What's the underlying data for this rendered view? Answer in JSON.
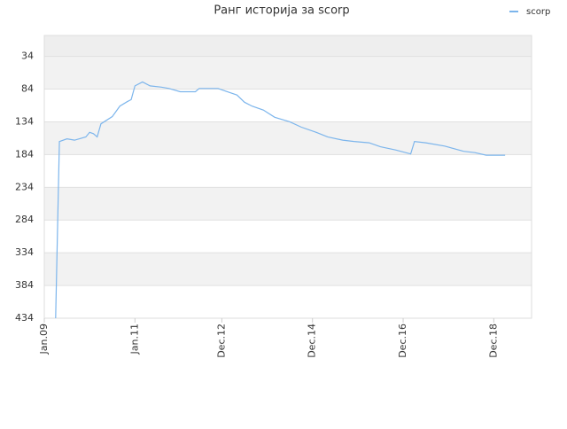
{
  "chart_data": {
    "type": "line",
    "title": "Ранг историја за scorp",
    "x": [
      "2009-04",
      "2009-05",
      "2009-07",
      "2009-09",
      "2009-12",
      "2010-01",
      "2010-02",
      "2010-03",
      "2010-04",
      "2010-07",
      "2010-09",
      "2010-11",
      "2010-12",
      "2011-01",
      "2011-03",
      "2011-05",
      "2011-08",
      "2011-10",
      "2012-01",
      "2012-05",
      "2012-06",
      "2012-11",
      "2013-01",
      "2013-04",
      "2013-06",
      "2013-08",
      "2013-11",
      "2014-02",
      "2014-06",
      "2014-09",
      "2015-01",
      "2015-04",
      "2015-08",
      "2015-11",
      "2016-03",
      "2016-06",
      "2016-10",
      "2017-02",
      "2017-03",
      "2017-06",
      "2017-11",
      "2018-04",
      "2018-07",
      "2018-10",
      "2019-03"
    ],
    "series": [
      {
        "name": "scorp",
        "color": "#7cb5ec",
        "values": [
          434,
          164,
          160,
          162,
          157,
          150,
          152,
          157,
          137,
          126,
          110,
          103,
          100,
          79,
          73,
          79,
          81,
          83,
          88,
          88,
          83,
          83,
          87,
          93,
          104,
          110,
          116,
          127,
          134,
          142,
          150,
          157,
          162,
          164,
          166,
          172,
          177,
          183,
          164,
          166,
          171,
          179,
          181,
          185,
          185
        ]
      }
    ],
    "xlim": [
      "2009-01",
      "2019-10"
    ],
    "xticks": [
      {
        "value": "2009-01",
        "label": "Jan.09"
      },
      {
        "value": "2011-01",
        "label": "Jan.11"
      },
      {
        "value": "2012-12",
        "label": "Dec.12"
      },
      {
        "value": "2014-12",
        "label": "Dec.14"
      },
      {
        "value": "2016-12",
        "label": "Dec.16"
      },
      {
        "value": "2018-12",
        "label": "Dec.18"
      }
    ],
    "ylim": [
      434,
      2
    ],
    "yticks": [
      34,
      84,
      134,
      184,
      234,
      284,
      334,
      384,
      434
    ],
    "grid": true,
    "legend": "top-right"
  }
}
